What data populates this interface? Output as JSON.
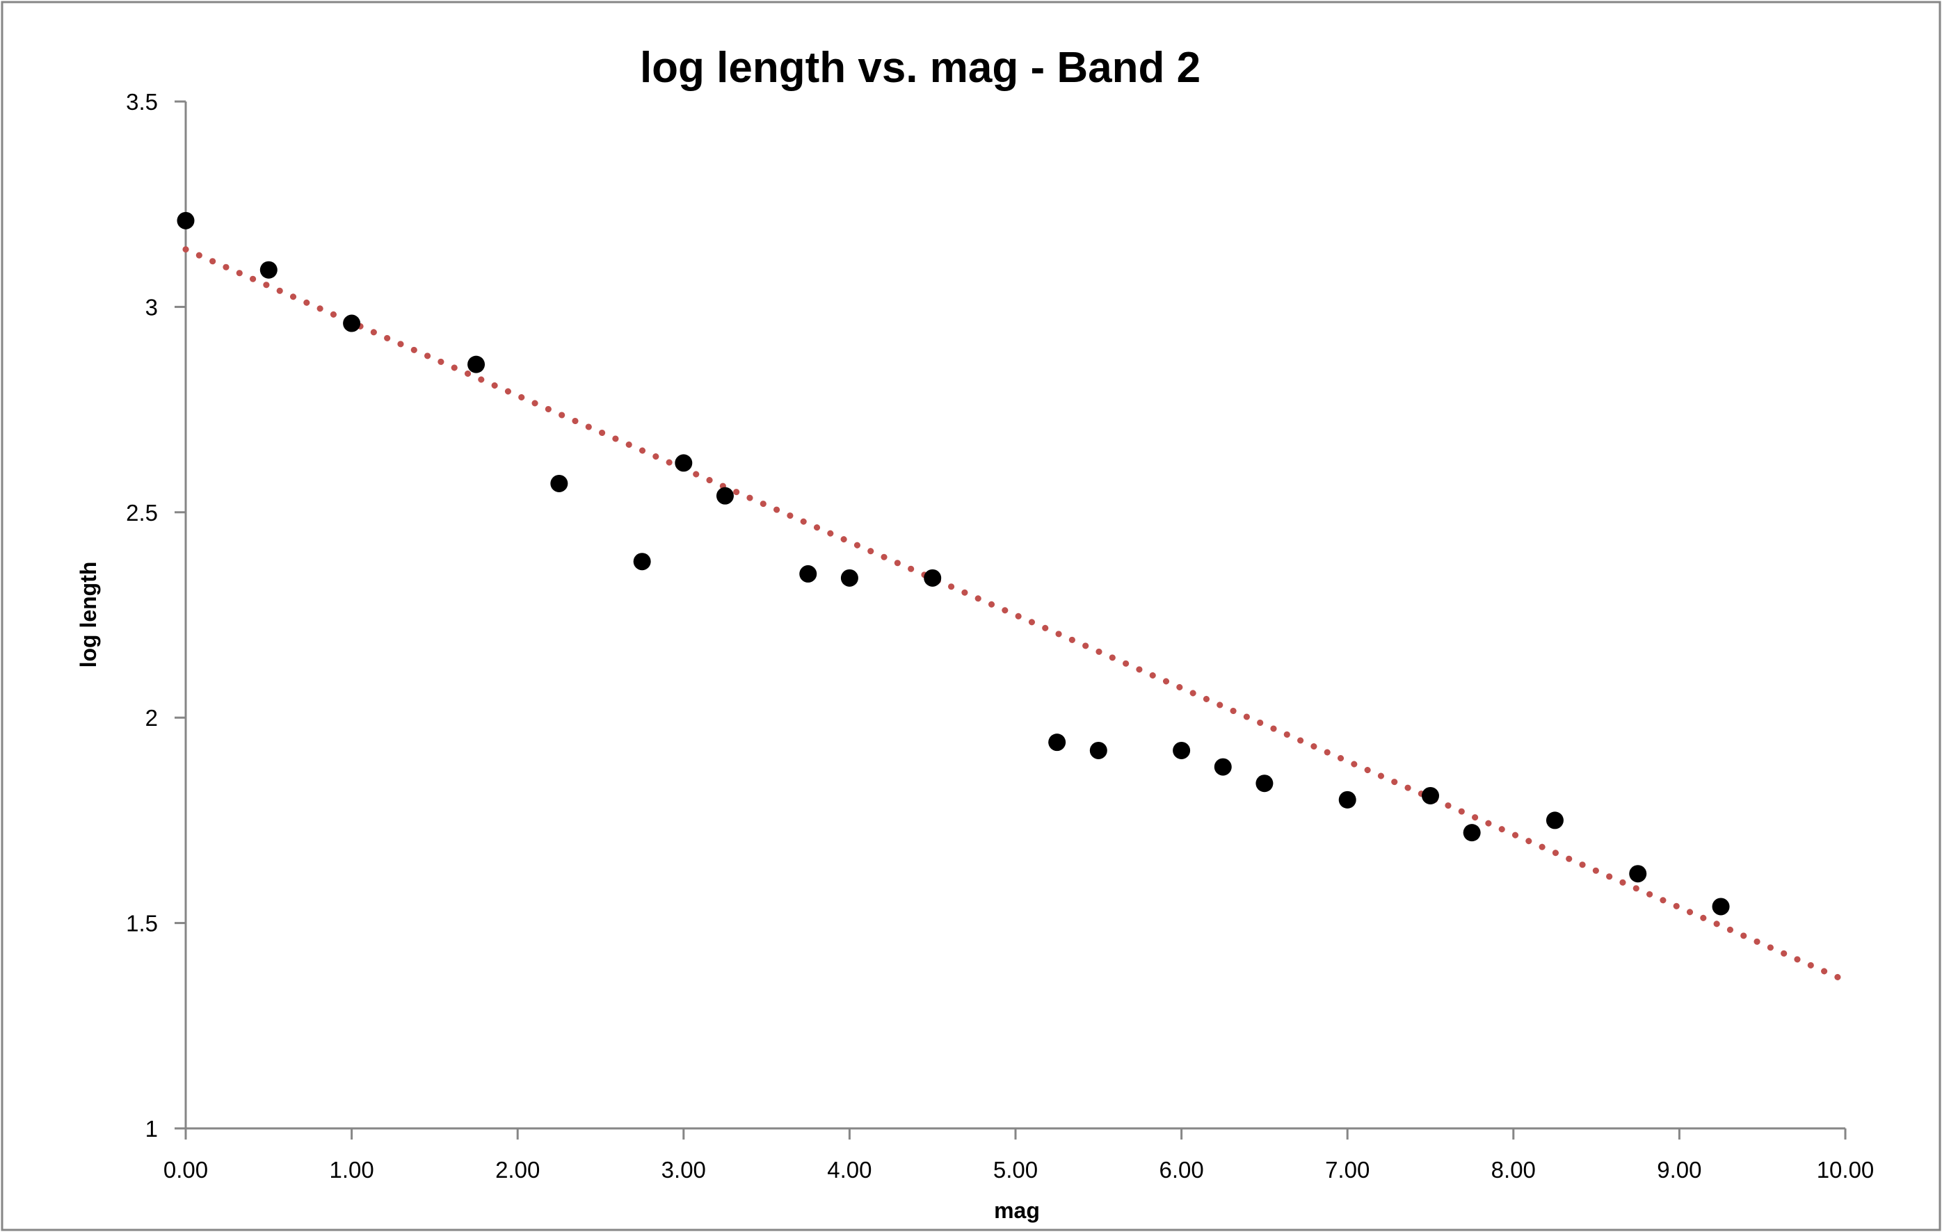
{
  "chart_data": {
    "type": "scatter",
    "title": "log length vs. mag - Band 2",
    "xlabel": "mag",
    "ylabel": "log length",
    "xlim": [
      0,
      10
    ],
    "ylim": [
      1,
      3.5
    ],
    "x_ticks": [
      0,
      1,
      2,
      3,
      4,
      5,
      6,
      7,
      8,
      9,
      10
    ],
    "x_tick_labels": [
      "0.00",
      "1.00",
      "2.00",
      "3.00",
      "4.00",
      "5.00",
      "6.00",
      "7.00",
      "8.00",
      "9.00",
      "10.00"
    ],
    "y_ticks": [
      1,
      1.5,
      2,
      2.5,
      3,
      3.5
    ],
    "y_tick_labels": [
      "1",
      "1.5",
      "2",
      "2.5",
      "3",
      "3.5"
    ],
    "grid": false,
    "legend": "none",
    "series": [
      {
        "type": "scatter",
        "color": "#000000",
        "points": [
          [
            0.0,
            3.21
          ],
          [
            0.5,
            3.09
          ],
          [
            1.0,
            2.96
          ],
          [
            1.75,
            2.86
          ],
          [
            2.25,
            2.57
          ],
          [
            2.75,
            2.38
          ],
          [
            3.0,
            2.62
          ],
          [
            3.25,
            2.54
          ],
          [
            3.75,
            2.35
          ],
          [
            4.0,
            2.34
          ],
          [
            4.5,
            2.34
          ],
          [
            5.25,
            1.94
          ],
          [
            5.5,
            1.92
          ],
          [
            6.0,
            1.92
          ],
          [
            6.25,
            1.88
          ],
          [
            6.5,
            1.84
          ],
          [
            7.0,
            1.8
          ],
          [
            7.5,
            1.81
          ],
          [
            7.75,
            1.72
          ],
          [
            8.25,
            1.75
          ],
          [
            8.75,
            1.62
          ],
          [
            9.25,
            1.54
          ]
        ]
      }
    ],
    "trendline": {
      "type": "linear",
      "style": "dotted",
      "color": "#c0504d",
      "from": [
        0,
        3.14
      ],
      "to": [
        10,
        1.36
      ]
    },
    "colors": {
      "axis": "#868686",
      "frame": "#868686",
      "marker": "#000000",
      "trendline": "#c0504d"
    }
  }
}
